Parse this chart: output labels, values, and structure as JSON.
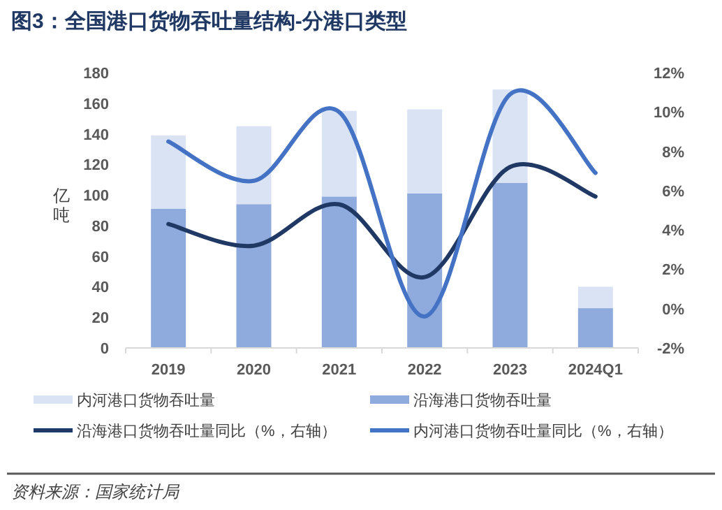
{
  "chart_data": {
    "type": "bar",
    "title": "图3：全国港口货物吞吐量结构-分港口类型",
    "ylabel": "亿吨",
    "categories": [
      "2019",
      "2020",
      "2021",
      "2022",
      "2023",
      "2024Q1"
    ],
    "stacked": true,
    "legend": "bottom",
    "grid": false,
    "ylim": [
      0,
      180
    ],
    "yticks": [
      0,
      20,
      40,
      60,
      80,
      100,
      120,
      140,
      160,
      180
    ],
    "y2lim": [
      -2,
      12
    ],
    "y2ticks": [
      {
        "value": -2,
        "label": "-2%"
      },
      {
        "value": 0,
        "label": "0%"
      },
      {
        "value": 2,
        "label": "2%"
      },
      {
        "value": 4,
        "label": "4%"
      },
      {
        "value": 6,
        "label": "6%"
      },
      {
        "value": 8,
        "label": "8%"
      },
      {
        "value": 10,
        "label": "10%"
      },
      {
        "value": 12,
        "label": "12%"
      }
    ],
    "series": [
      {
        "name": "沿海港口货物吞吐量",
        "color": "#8faadc",
        "values": [
          91,
          94,
          99,
          101,
          108,
          26
        ]
      },
      {
        "name": "内河港口货物吞吐量",
        "color": "#dae3f3",
        "values": [
          48,
          51,
          56,
          55,
          61,
          14
        ]
      },
      {
        "name": "沿海港口货物吞吐量同比（%，右轴）",
        "type": "line",
        "axis": "y2",
        "color": "#1f3864",
        "values": [
          4.3,
          3.2,
          5.3,
          1.6,
          7.2,
          5.7
        ]
      },
      {
        "name": "内河港口货物吞吐量同比（%，右轴）",
        "type": "line",
        "axis": "y2",
        "color": "#4472c4",
        "values": [
          8.5,
          6.5,
          10.0,
          -0.4,
          10.9,
          6.9
        ]
      }
    ],
    "annotations": [
      "资料来源：国家统计局"
    ]
  }
}
